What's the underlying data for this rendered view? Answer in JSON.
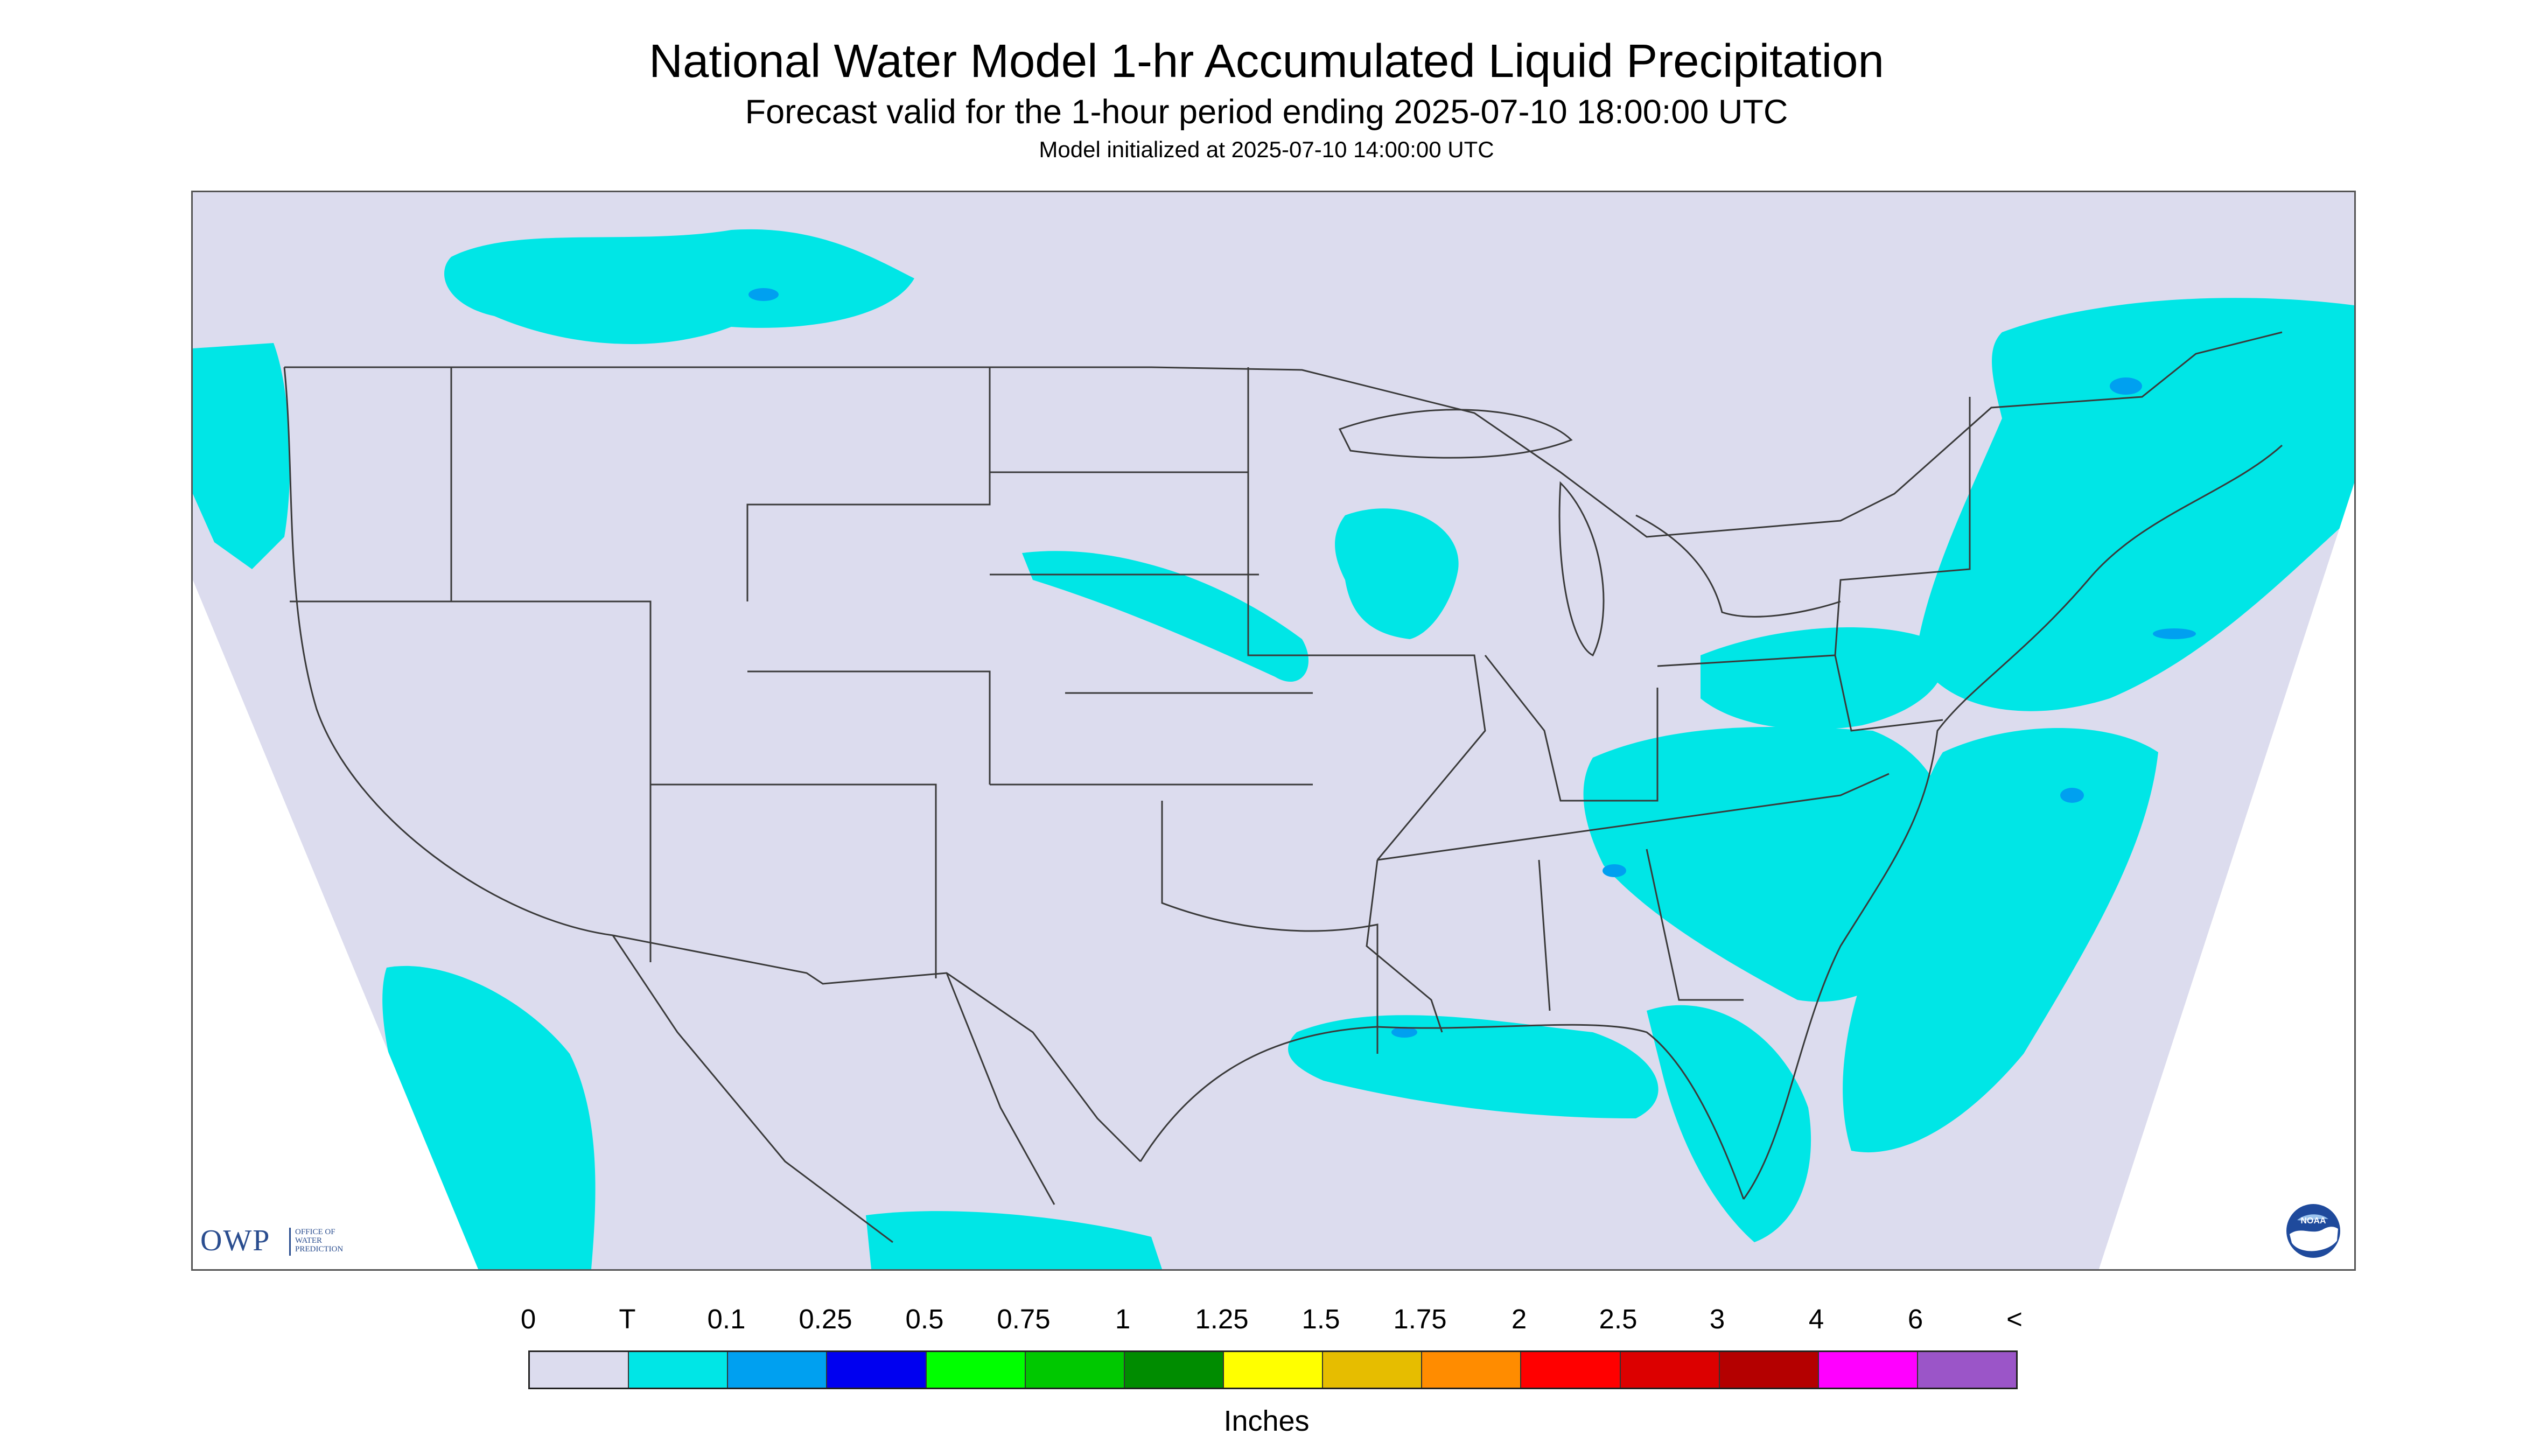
{
  "title": "National Water Model 1-hr Accumulated Liquid Precipitation",
  "subtitle": "Forecast valid for the 1-hour period ending 2025-07-10 18:00:00 UTC",
  "init_line": "Model initialized at 2025-07-10 14:00:00 UTC",
  "logos": {
    "owp_letters": "OWP",
    "owp_sub": [
      "OFFICE OF",
      "WATER",
      "PREDICTION"
    ],
    "noaa": "NOAA"
  },
  "colors": {
    "background_map": "#dcdcee",
    "outside_domain": "#ffffff",
    "borders": "#3a3a3a"
  },
  "legend": {
    "labels": [
      "0",
      "T",
      "0.1",
      "0.25",
      "0.5",
      "0.75",
      "1",
      "1.25",
      "1.5",
      "1.75",
      "2",
      "2.5",
      "3",
      "4",
      "6",
      "<"
    ],
    "colors": [
      "#dcdcee",
      "#00e6e6",
      "#00a0f0",
      "#0000f0",
      "#00ff00",
      "#00c800",
      "#008c00",
      "#ffff00",
      "#e6bd00",
      "#ff8c00",
      "#ff0000",
      "#dc0000",
      "#b40000",
      "#ff00ff",
      "#9b55c8"
    ],
    "units": "Inches"
  }
}
